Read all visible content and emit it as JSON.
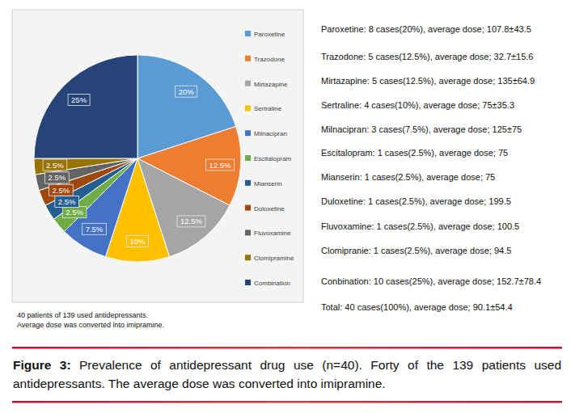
{
  "chart_data": {
    "type": "pie",
    "categories": [
      "Paroxetine",
      "Trazodone",
      "Mirtazapine",
      "Sertraline",
      "Milnacipran",
      "Escitalopram",
      "Mianserin",
      "Duloxetine",
      "Fluvoxamine",
      "Clomipramine",
      "Combination"
    ],
    "values": [
      20,
      12.5,
      12.5,
      10,
      7.5,
      2.5,
      2.5,
      2.5,
      2.5,
      2.5,
      25
    ],
    "value_labels": [
      "20%",
      "12.5%",
      "12.5%",
      "10%",
      "7.5%",
      "2.5%",
      "2.5%",
      "2.5%",
      "2.5%",
      "2.5%",
      "25%"
    ],
    "colors": [
      "#5b9bd5",
      "#ed7d31",
      "#a5a5a5",
      "#ffc000",
      "#4472c4",
      "#70ad47",
      "#255e91",
      "#9e480e",
      "#636363",
      "#997300",
      "#264478"
    ],
    "data_labels": true,
    "legend": "right",
    "annotations": [
      "Paroxetine: 8 cases(20%), average dose; 107.8±43.5",
      "Trazodone: 5 cases(12.5%), average dose; 32.7±15.6",
      "Mirtazapine: 5 cases(12.5%), average dose; 135±64.9",
      "Sertraline: 4 cases(10%), average dose; 75±35.3",
      "Milnacipran: 3 cases(7.5%), average dose; 125±75",
      "Escitalopram: 1 cases(2.5%), average dose; 75",
      "Mianserin: 1 cases(2.5%), average dose; 75",
      "Duloxetine: 1 cases(2.5%), average dose; 199.5",
      "Fluvoxamine: 1 cases(2.5%), average dose; 100.5",
      "Clomipranie: 1 cases(2.5%), average dose; 94.5",
      "Conbination: 10 cases(25%), average dose; 152.7±78.4",
      "Total: 40 cases(100%), average dose; 90.1±54.4"
    ],
    "notes": [
      "40 patients of 139 used antidepressants.",
      "Average dose was converted into imipramine."
    ],
    "caption": {
      "label": "Figure 3:",
      "text": "Prevalence of antidepressant drug use (n=40). Forty of the 139 patients used antidepressants. The average dose was converted into imipramine."
    }
  }
}
